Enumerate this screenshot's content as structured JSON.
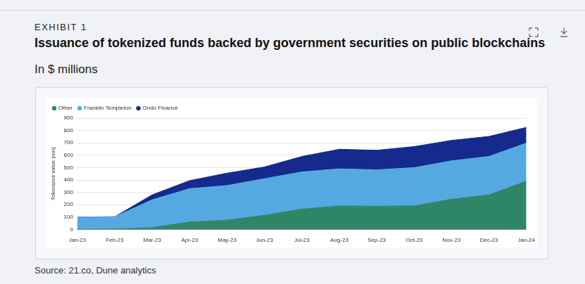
{
  "exhibit": "EXHIBIT 1",
  "source": "Source: 21.co, Dune analytics",
  "chart_data": {
    "type": "area",
    "title": "Issuance of tokenized funds backed by government securities on public blockchains",
    "subtitle": "In $ millions",
    "y_label": "Tokenized value (mn)",
    "categories": [
      "Jan-23",
      "Feb-23",
      "Mar-23",
      "Apr-23",
      "May-23",
      "Jun-23",
      "Jul-23",
      "Aug-23",
      "Sep-23",
      "Oct-23",
      "Nov-23",
      "Dec-23",
      "Jan-24"
    ],
    "series": [
      {
        "name": "Other",
        "color": "#2f8667",
        "values": [
          0,
          3,
          15,
          60,
          75,
          115,
          165,
          190,
          188,
          190,
          245,
          280,
          390
        ]
      },
      {
        "name": "Franklin Templeton",
        "color": "#55a9e1",
        "values": [
          100,
          100,
          225,
          270,
          280,
          295,
          300,
          300,
          294,
          310,
          310,
          310,
          308
        ]
      },
      {
        "name": "Ondo Finance",
        "color": "#152a8c",
        "values": [
          0,
          0,
          40,
          65,
          100,
          95,
          125,
          158,
          158,
          170,
          165,
          162,
          127
        ]
      }
    ],
    "stacked": true,
    "ylim": [
      0,
      900
    ],
    "yticks": [
      0,
      100,
      200,
      300,
      400,
      500,
      600,
      700,
      800,
      900
    ],
    "grid": true,
    "legend": "top-left"
  }
}
